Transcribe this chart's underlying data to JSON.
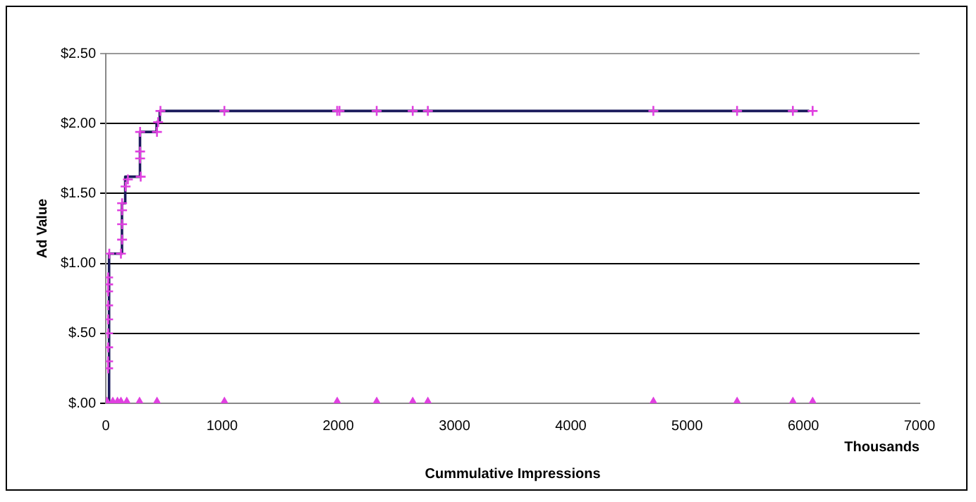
{
  "chart_data": {
    "type": "line",
    "xlabel": "Cummulative Impressions",
    "ylabel": "Ad Value",
    "annotations": [
      "Thousands"
    ],
    "xlim": [
      0,
      7000
    ],
    "xticks": [
      0,
      1000,
      2000,
      3000,
      4000,
      5000,
      6000,
      7000
    ],
    "ylim": [
      0,
      2.5
    ],
    "yticks": [
      {
        "value": 0,
        "label": "$.00"
      },
      {
        "value": 0.5,
        "label": "$.50"
      },
      {
        "value": 1,
        "label": "$1.00"
      },
      {
        "value": 1.5,
        "label": "$1.50"
      },
      {
        "value": 2,
        "label": "$2.00"
      },
      {
        "value": 2.5,
        "label": "$2.50"
      }
    ],
    "grid": "y",
    "legend": false,
    "series": [
      {
        "type": "step",
        "color": "#1b1b5c",
        "marker": "none",
        "x": [
          28,
          139,
          167,
          294,
          437,
          464,
          6050
        ],
        "values": [
          0,
          1.07,
          1.43,
          1.62,
          1.94,
          2.01,
          2.09
        ]
      },
      {
        "type": "scatter",
        "color": "#e040e0",
        "marker": "cross",
        "x": [
          20,
          20,
          20,
          20,
          20,
          20,
          20,
          20,
          20,
          30,
          130,
          140,
          140,
          140,
          140,
          170,
          190,
          300,
          295,
          295,
          295,
          440,
          450,
          470,
          1020,
          1990,
          2010,
          2330,
          2640,
          2770,
          4710,
          5430,
          5910,
          6080
        ],
        "values": [
          0.25,
          0.3,
          0.4,
          0.5,
          0.6,
          0.7,
          0.8,
          0.85,
          0.9,
          1.07,
          1.07,
          1.17,
          1.28,
          1.38,
          1.43,
          1.55,
          1.6,
          1.62,
          1.75,
          1.8,
          1.94,
          1.94,
          2.01,
          2.09,
          2.09,
          2.09,
          2.09,
          2.09,
          2.09,
          2.09,
          2.09,
          2.09,
          2.09,
          2.09
        ]
      },
      {
        "type": "scatter",
        "color": "#e040e0",
        "marker": "triangle",
        "x": [
          10,
          60,
          100,
          130,
          180,
          290,
          440,
          1020,
          1990,
          2330,
          2640,
          2770,
          4710,
          5430,
          5910,
          6080
        ],
        "values": [
          0,
          0,
          0,
          0,
          0,
          0,
          0,
          0,
          0,
          0,
          0,
          0,
          0,
          0,
          0,
          0
        ]
      }
    ]
  }
}
